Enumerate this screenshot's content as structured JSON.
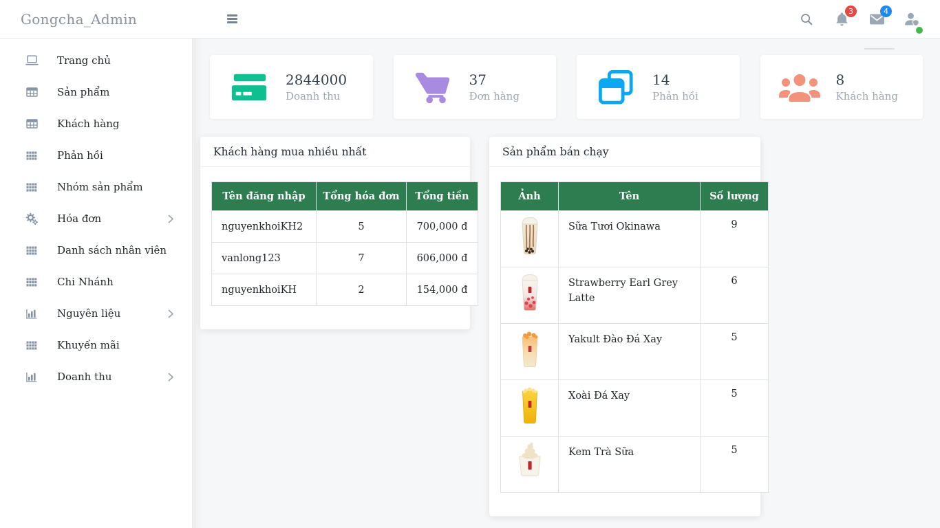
{
  "header": {
    "brand": "Gongcha_Admin",
    "notification_count": "3",
    "message_count": "4"
  },
  "sidebar": {
    "items": [
      {
        "key": "trang-chu",
        "label": "Trang chủ",
        "icon": "desktop",
        "has_submenu": false
      },
      {
        "key": "san-pham",
        "label": "Sản phẩm",
        "icon": "table",
        "has_submenu": false
      },
      {
        "key": "khach-hang",
        "label": "Khách hàng",
        "icon": "table",
        "has_submenu": false
      },
      {
        "key": "phan-hoi",
        "label": "Phản hồi",
        "icon": "grid",
        "has_submenu": false
      },
      {
        "key": "nhom-san-pham",
        "label": "Nhóm sản phẩm",
        "icon": "grid",
        "has_submenu": false
      },
      {
        "key": "hoa-don",
        "label": "Hóa đơn",
        "icon": "cogs",
        "has_submenu": true
      },
      {
        "key": "danh-sach-nhan-vien",
        "label": "Danh sách nhân viên",
        "icon": "grid",
        "has_submenu": false
      },
      {
        "key": "chi-nhanh",
        "label": "Chi Nhánh",
        "icon": "grid",
        "has_submenu": false
      },
      {
        "key": "nguyen-lieu",
        "label": "Nguyên liệu",
        "icon": "chart",
        "has_submenu": true
      },
      {
        "key": "khuyen-mai",
        "label": "Khuyến mãi",
        "icon": "grid",
        "has_submenu": false
      },
      {
        "key": "doanh-thu",
        "label": "Doanh thu",
        "icon": "chart",
        "has_submenu": true
      }
    ]
  },
  "stats": [
    {
      "key": "doanh-thu",
      "value": "2844000",
      "label": "Doanh thu",
      "icon": "credit-card",
      "color": "#0fbf8f"
    },
    {
      "key": "don-hang",
      "value": "37",
      "label": "Đơn hàng",
      "icon": "shopping-cart",
      "color": "#a88ae0"
    },
    {
      "key": "phan-hoi",
      "value": "14",
      "label": "Phản hồi",
      "icon": "clone",
      "color": "#0da6f2"
    },
    {
      "key": "khach-hang",
      "value": "8",
      "label": "Khách hàng",
      "icon": "users",
      "color": "#f2917c"
    }
  ],
  "top_customers": {
    "title": "Khách hàng mua nhiều nhất",
    "columns": [
      "Tên đăng nhập",
      "Tổng hóa đơn",
      "Tổng tiền"
    ],
    "rows": [
      [
        "nguyenkhoiKH2",
        "5",
        "700,000 đ"
      ],
      [
        "vanlong123",
        "7",
        "606,000 đ"
      ],
      [
        "nguyenkhoiKH",
        "2",
        "154,000 đ"
      ]
    ]
  },
  "best_sellers": {
    "title": "Sản phẩm bán chạy",
    "columns": [
      "Ảnh",
      "Tên",
      "Số lượng"
    ],
    "rows": [
      {
        "image": "okinawa-milk-tea-cup",
        "name": "Sữa Tươi Okinawa",
        "qty": "9"
      },
      {
        "image": "strawberry-latte-cup",
        "name": "Strawberry Earl Grey Latte",
        "qty": "6"
      },
      {
        "image": "yakult-peach-smoothie-cup",
        "name": "Yakult Đào Đá Xay",
        "qty": "5"
      },
      {
        "image": "mango-smoothie-cup",
        "name": "Xoài Đá Xay",
        "qty": "5"
      },
      {
        "image": "milk-tea-ice-cream-cup",
        "name": "Kem Trà Sữa",
        "qty": "5"
      }
    ]
  },
  "colors": {
    "table_header_green": "#2e7d51",
    "accent_green": "#0fbf8f",
    "accent_purple": "#a88ae0",
    "accent_blue": "#0da6f2",
    "accent_salmon": "#f2917c",
    "badge_red": "#e24a43",
    "badge_blue": "#1e88f2",
    "status_green": "#43b94c"
  }
}
